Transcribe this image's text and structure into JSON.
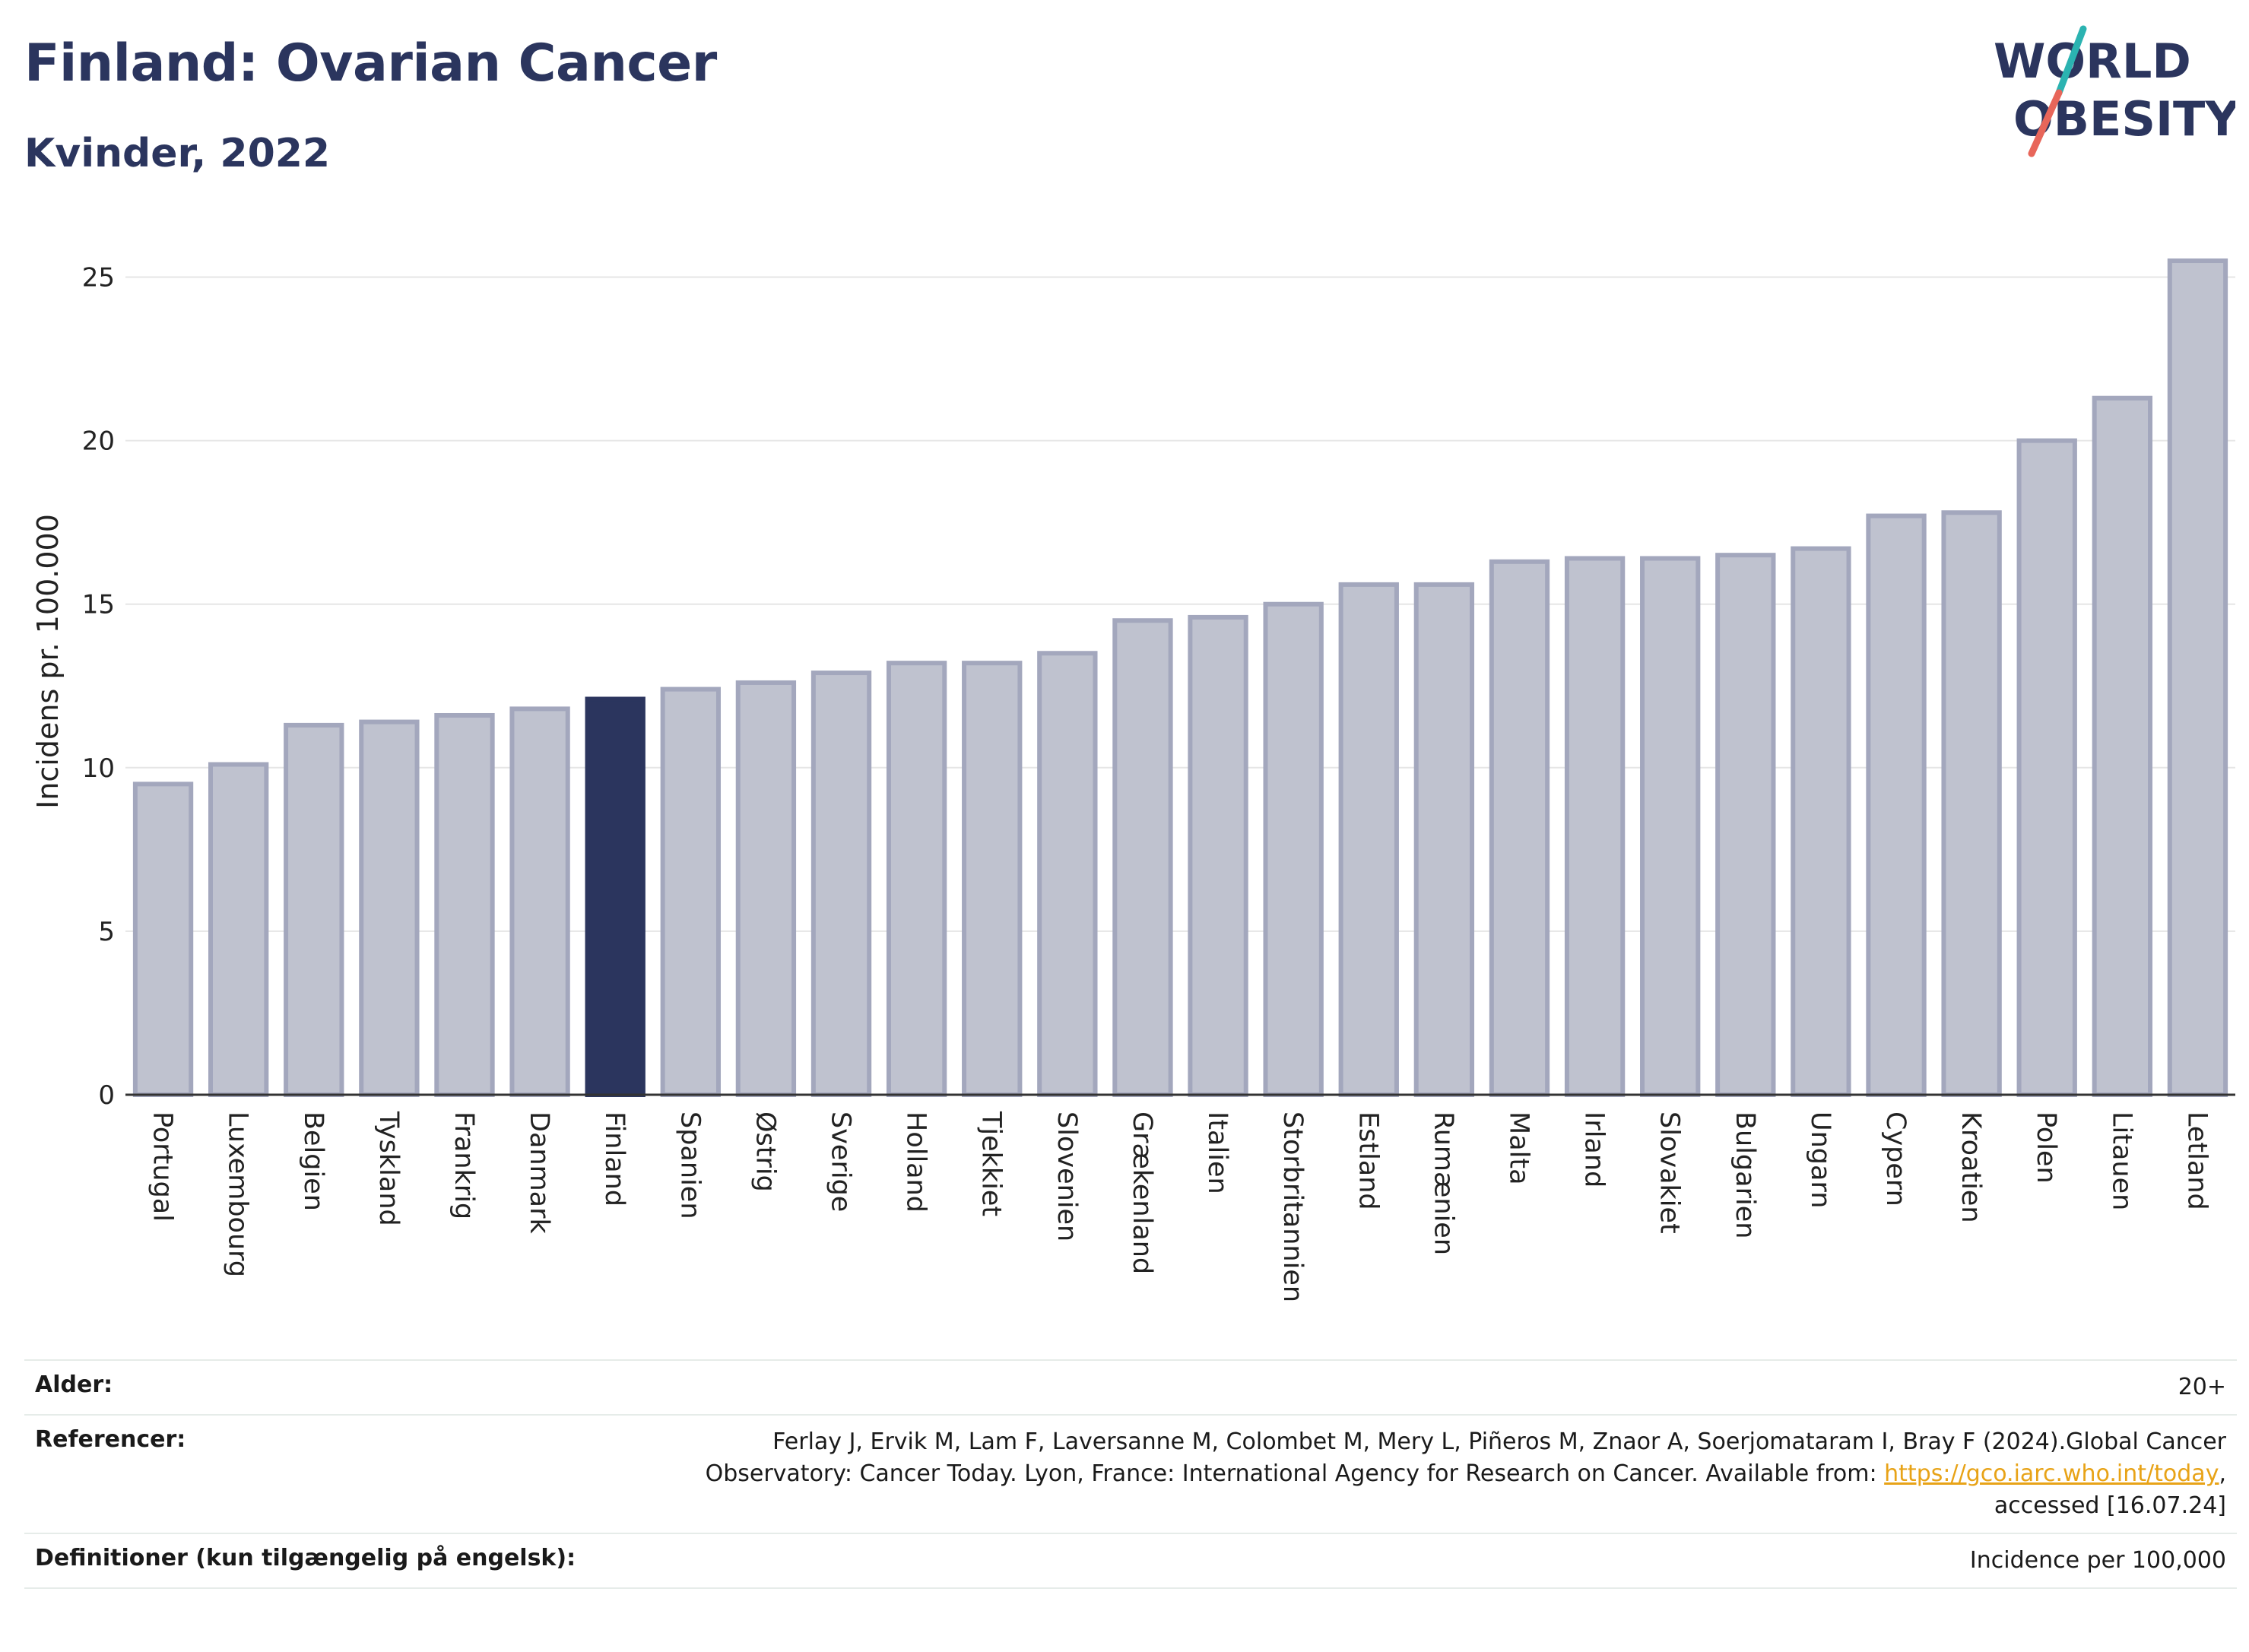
{
  "header": {
    "title": "Finland: Ovarian Cancer",
    "subtitle": "Kvinder, 2022"
  },
  "logo": {
    "line1": "WORLD",
    "line2": "OBESITY",
    "colors": {
      "text": "#2b355e",
      "accent_teal": "#2bb3b1",
      "accent_coral": "#e8665a"
    }
  },
  "chart_data": {
    "type": "bar",
    "ylabel": "Incidens pr. 100.000",
    "xlabel": "",
    "ylim": [
      0,
      26.5
    ],
    "yticks": [
      0,
      5,
      10,
      15,
      20,
      25
    ],
    "grid": true,
    "highlight": "Finland",
    "colors": {
      "bar": "#bfc2cf",
      "bar_border": "#a3a7bd",
      "highlight": "#2b355e",
      "grid": "#e6e6e6",
      "axis": "#333333"
    },
    "categories": [
      "Portugal",
      "Luxembourg",
      "Belgien",
      "Tyskland",
      "Frankrig",
      "Danmark",
      "Finland",
      "Spanien",
      "Østrig",
      "Sverige",
      "Holland",
      "Tjekkiet",
      "Slovenien",
      "Grækenland",
      "Italien",
      "Storbritannien",
      "Estland",
      "Rumænien",
      "Malta",
      "Irland",
      "Slovakiet",
      "Bulgarien",
      "Ungarn",
      "Cypern",
      "Kroatien",
      "Polen",
      "Litauen",
      "Letland"
    ],
    "values": [
      9.5,
      10.1,
      11.3,
      11.4,
      11.6,
      11.8,
      12.1,
      12.4,
      12.6,
      12.9,
      13.2,
      13.2,
      13.5,
      14.5,
      14.6,
      15.0,
      15.6,
      15.6,
      16.3,
      16.4,
      16.4,
      16.5,
      16.7,
      17.7,
      17.8,
      20.0,
      21.3,
      25.5
    ]
  },
  "footer": {
    "age_label": "Alder:",
    "age_value": "20+",
    "ref_label": "Referencer:",
    "ref_text_1": "Ferlay J, Ervik M, Lam F, Laversanne M, Colombet M, Mery L, Piñeros M, Znaor A, Soerjomataram I, Bray F (2024).Global Cancer Observatory: Cancer Today. Lyon, France: International Agency for Research on Cancer. Available from:",
    "ref_link": "https://gco.iarc.who.int/today",
    "ref_text_2": ", accessed [16.07.24]",
    "def_label": "Definitioner (kun tilgængelig på engelsk):",
    "def_value": "Incidence per 100,000"
  }
}
